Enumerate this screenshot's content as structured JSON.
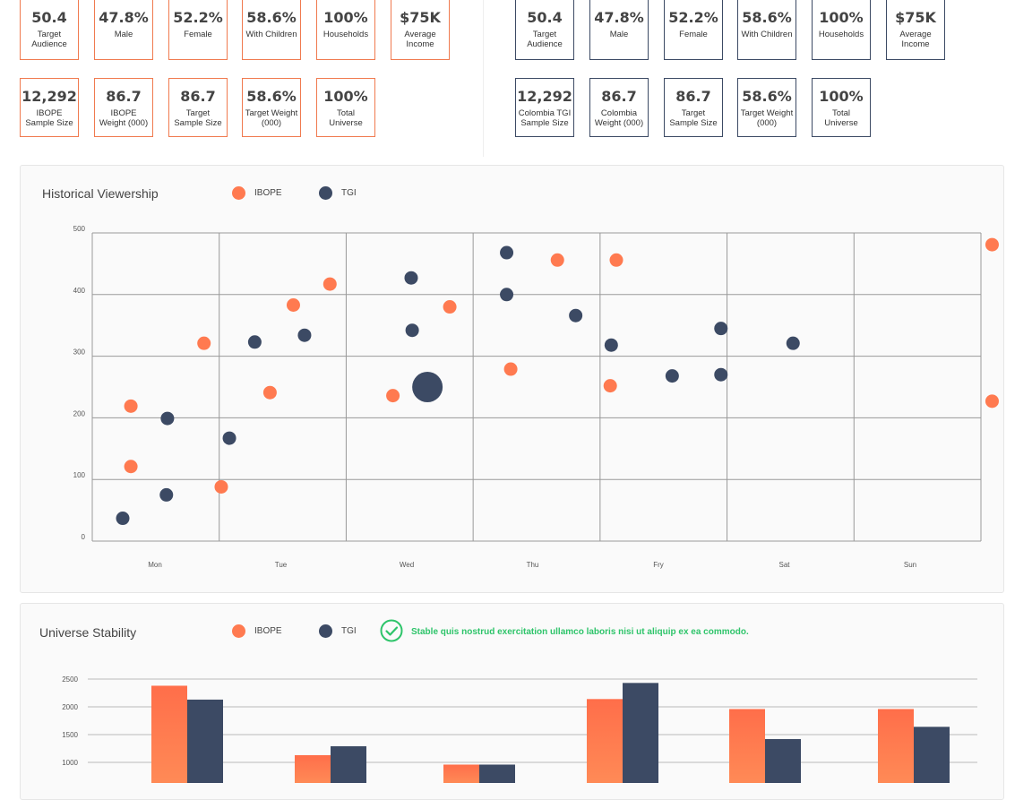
{
  "ibope_stats_row1": [
    {
      "value": "50.4",
      "label": "Target Audience"
    },
    {
      "value": "47.8%",
      "label": "Male"
    },
    {
      "value": "52.2%",
      "label": "Female"
    },
    {
      "value": "58.6%",
      "label": "With Children"
    },
    {
      "value": "100%",
      "label": "Households"
    },
    {
      "value": "$75K",
      "label": "Average Income"
    }
  ],
  "ibope_stats_row2": [
    {
      "value": "12,292",
      "label": "IBOPE Sample Size"
    },
    {
      "value": "86.7",
      "label": "IBOPE Weight (000)"
    },
    {
      "value": "86.7",
      "label": "Target Sample Size"
    },
    {
      "value": "58.6%",
      "label": "Target Weight (000)"
    },
    {
      "value": "100%",
      "label": "Total Universe"
    }
  ],
  "tgi_stats_row1": [
    {
      "value": "50.4",
      "label": "Target Audience"
    },
    {
      "value": "47.8%",
      "label": "Male"
    },
    {
      "value": "52.2%",
      "label": "Female"
    },
    {
      "value": "58.6%",
      "label": "With Children"
    },
    {
      "value": "100%",
      "label": "Households"
    },
    {
      "value": "$75K",
      "label": "Average Income"
    }
  ],
  "tgi_stats_row2": [
    {
      "value": "12,292",
      "label": "Colombia TGI Sample Size"
    },
    {
      "value": "86.7",
      "label": "Colombia Weight (000)"
    },
    {
      "value": "86.7",
      "label": "Target Sample Size"
    },
    {
      "value": "58.6%",
      "label": "Target Weight (000)"
    },
    {
      "value": "100%",
      "label": "Total Universe"
    }
  ],
  "colors": {
    "ibope": "#ff7a50",
    "tgi": "#3c4a64",
    "stable": "#2ec46a"
  },
  "historical": {
    "title": "Historical Viewership",
    "legend": {
      "ibope": "IBOPE",
      "tgi": "TGI"
    },
    "chart_data": {
      "type": "scatter",
      "categories": [
        "Mon",
        "Tue",
        "Wed",
        "Thu",
        "Fry",
        "Sat",
        "Sun"
      ],
      "ylim": [
        0,
        500
      ],
      "yticks": [
        0,
        100,
        200,
        300,
        400,
        500
      ],
      "series": [
        {
          "name": "IBOPE",
          "points": [
            [
              0.38,
              219
            ],
            [
              0.38,
              121
            ],
            [
              1.1,
              321
            ],
            [
              1.27,
              88
            ],
            [
              1.75,
              241
            ],
            [
              1.98,
              383
            ],
            [
              2.34,
              417
            ],
            [
              2.96,
              236
            ],
            [
              3.52,
              380
            ],
            [
              4.12,
              279
            ],
            [
              4.58,
              456
            ],
            [
              5.16,
              456
            ],
            [
              5.1,
              252
            ],
            [
              8.86,
              481
            ],
            [
              8.86,
              227
            ]
          ]
        },
        {
          "name": "TGI",
          "points": [
            [
              0.3,
              37
            ],
            [
              0.74,
              199
            ],
            [
              0.73,
              75
            ],
            [
              1.35,
              167
            ],
            [
              1.6,
              323
            ],
            [
              2.09,
              334
            ],
            [
              3.14,
              427
            ],
            [
              3.15,
              342
            ],
            [
              4.08,
              468
            ],
            [
              4.08,
              400
            ],
            [
              4.76,
              366
            ],
            [
              5.11,
              318
            ],
            [
              5.71,
              268
            ],
            [
              6.19,
              345
            ],
            [
              6.19,
              270
            ],
            [
              6.9,
              321
            ]
          ],
          "big": [
            2.64,
            250
          ]
        }
      ]
    }
  },
  "stability": {
    "title": "Universe Stability",
    "legend": {
      "ibope": "IBOPE",
      "tgi": "TGI"
    },
    "message": "Stable quis nostrud exercitation ullamco laboris nisi ut aliquip ex ea commodo.",
    "check_icon": "check-circle-icon",
    "chart_data": {
      "type": "bar",
      "yticks": [
        1000,
        1500,
        2000,
        2500
      ],
      "series": [
        {
          "name": "IBOPE",
          "values": [
            2380,
            1130,
            960,
            2140,
            1960,
            1960
          ]
        },
        {
          "name": "TGI",
          "values": [
            2130,
            1290,
            960,
            2430,
            1420,
            1640
          ]
        }
      ]
    }
  }
}
